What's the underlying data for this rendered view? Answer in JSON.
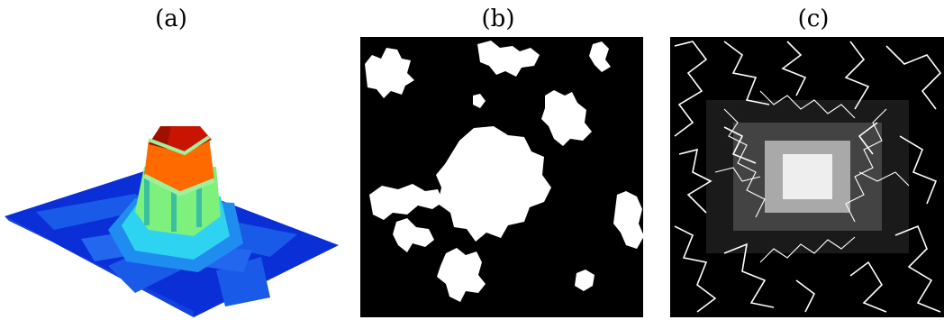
{
  "figure": {
    "panel_a": {
      "label": "(a)",
      "description_icon": "surface-plot"
    },
    "panel_b": {
      "label": "(b)",
      "description_icon": "binary-cluster-image"
    },
    "panel_c": {
      "label": "(c)",
      "description_icon": "random-walk-paths-image"
    }
  },
  "colors": {
    "background": "#ffffff",
    "surface_dark_blue": "#0a2fd6",
    "surface_mid_blue": "#1f6cf2",
    "surface_cyan": "#2ed3f2",
    "surface_green": "#7df07d",
    "surface_orange": "#ff6a00",
    "surface_red": "#c81400",
    "binary_fg": "#ffffff",
    "binary_bg": "#000000"
  }
}
